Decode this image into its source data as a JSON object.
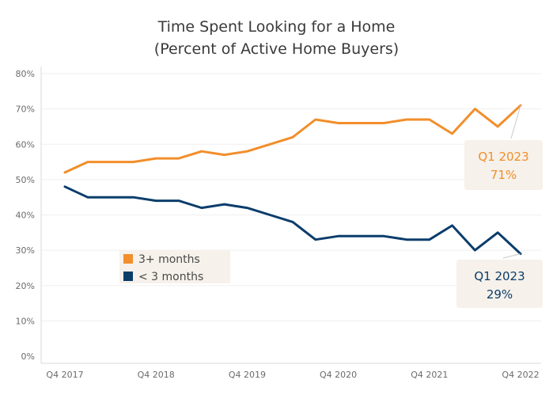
{
  "chart_data": {
    "type": "line",
    "title": [
      "Time Spent Looking for a Home",
      "(Percent of Active Home Buyers)"
    ],
    "xlabel": "",
    "ylabel": "",
    "ylim": [
      0,
      80
    ],
    "yticks": [
      0,
      10,
      20,
      30,
      40,
      50,
      60,
      70,
      80
    ],
    "ytick_labels": [
      "0%",
      "10%",
      "20%",
      "30%",
      "40%",
      "50%",
      "60%",
      "70%",
      "80%"
    ],
    "x_tick_labels": [
      {
        "label": "Q4 2017",
        "index": 0
      },
      {
        "label": "Q4 2018",
        "index": 4
      },
      {
        "label": "Q4 2019",
        "index": 8
      },
      {
        "label": "Q4 2020",
        "index": 12
      },
      {
        "label": "Q4 2021",
        "index": 16
      },
      {
        "label": "Q4 2022",
        "index": 20
      }
    ],
    "grid": true,
    "legend_position": "middle-left",
    "series": [
      {
        "name": "3+ months",
        "color": "#f28e2b",
        "values": [
          52,
          55,
          55,
          55,
          56,
          56,
          58,
          57,
          58,
          60,
          62,
          67,
          66,
          66,
          66,
          67,
          67,
          63,
          70,
          65,
          71
        ]
      },
      {
        "name": "< 3 months",
        "color": "#0b3d6b",
        "values": [
          48,
          45,
          45,
          45,
          44,
          44,
          42,
          43,
          42,
          40,
          38,
          33,
          34,
          34,
          34,
          33,
          33,
          37,
          30,
          35,
          29
        ]
      }
    ],
    "annotations": [
      {
        "series": 0,
        "lines": [
          "Q1 2023",
          "71%"
        ],
        "color": "#f28e2b"
      },
      {
        "series": 1,
        "lines": [
          "Q1 2023",
          "29%"
        ],
        "color": "#0b3d6b"
      }
    ],
    "annotation_box_color": "#f6f1ea"
  }
}
